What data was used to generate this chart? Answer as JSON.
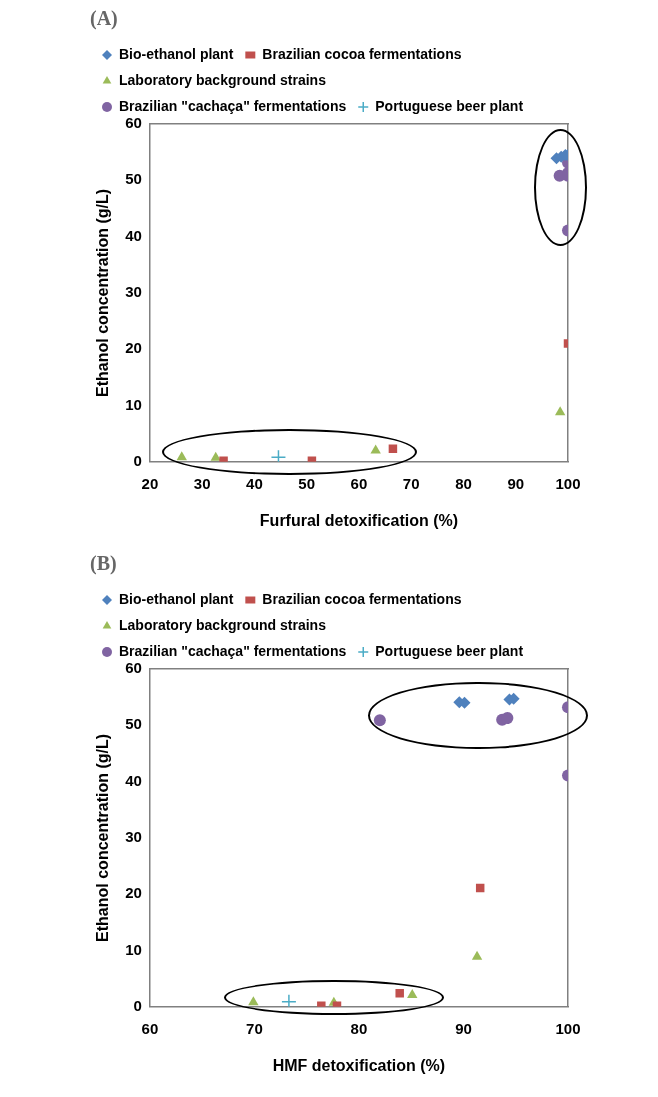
{
  "chart_data": [
    {
      "type": "scatter",
      "title": "(A)",
      "xlabel": "Furfural detoxification (%)",
      "ylabel": "Ethanol concentration (g/L)",
      "xlim": [
        20,
        100
      ],
      "xticks": [
        20,
        30,
        40,
        50,
        60,
        70,
        80,
        90,
        100
      ],
      "ylim": [
        0,
        60
      ],
      "yticks": [
        0,
        10,
        20,
        30,
        40,
        50,
        60
      ],
      "legend": "top",
      "grid": false,
      "series": [
        {
          "name": "Bio-ethanol plant",
          "color": "#4f81bd",
          "marker": "diamond",
          "x": [
            97.8,
            98.7,
            99.5,
            100
          ],
          "values": [
            53.9,
            54.2,
            54.5,
            54.5
          ]
        },
        {
          "name": "Brazilian cocoa fermentations",
          "color": "#c0504d",
          "marker": "square",
          "x": [
            34.1,
            51.0,
            66.5,
            100
          ],
          "values": [
            0.2,
            0.2,
            2.3,
            21.0
          ]
        },
        {
          "name": "Laboratory background strains",
          "color": "#9bbb59",
          "marker": "triangle",
          "x": [
            26.1,
            32.6,
            63.2,
            98.5
          ],
          "values": [
            0.8,
            0.7,
            2.0,
            8.8
          ]
        },
        {
          "name": "Brazilian \"cachaça\" fermentations",
          "color": "#8064a2",
          "marker": "circle",
          "x": [
            100,
            98.4,
            100,
            100,
            100
          ],
          "values": [
            53.1,
            50.8,
            51.3,
            50.8,
            41.1
          ]
        },
        {
          "name": "Portuguese beer plant",
          "color": "#4bacc6",
          "marker": "cross",
          "x": [
            44.6
          ],
          "values": [
            0.8
          ]
        }
      ]
    },
    {
      "type": "scatter",
      "title": "(B)",
      "xlabel": "HMF detoxification (%)",
      "ylabel": "Ethanol concentration (g/L)",
      "xlim": [
        60,
        100
      ],
      "xticks": [
        60,
        70,
        80,
        90,
        100
      ],
      "ylim": [
        0,
        60
      ],
      "yticks": [
        0,
        10,
        20,
        30,
        40,
        50,
        60
      ],
      "legend": "top",
      "grid": false,
      "series": [
        {
          "name": "Bio-ethanol plant",
          "color": "#4f81bd",
          "marker": "diamond",
          "x": [
            89.6,
            90.1,
            94.4,
            94.8
          ],
          "values": [
            54.1,
            54.0,
            54.6,
            54.7
          ]
        },
        {
          "name": "Brazilian cocoa fermentations",
          "color": "#c0504d",
          "marker": "square",
          "x": [
            76.4,
            77.9,
            83.9,
            91.6
          ],
          "values": [
            0.2,
            0.2,
            2.4,
            21.1
          ]
        },
        {
          "name": "Laboratory background strains",
          "color": "#9bbb59",
          "marker": "triangle",
          "x": [
            69.9,
            77.6,
            85.1,
            91.3
          ],
          "values": [
            0.8,
            0.7,
            2.1,
            8.9
          ]
        },
        {
          "name": "Brazilian \"cachaça\" fermentations",
          "color": "#8064a2",
          "marker": "circle",
          "x": [
            82.0,
            93.7,
            94.2,
            100,
            100
          ],
          "values": [
            50.9,
            51.0,
            51.3,
            53.2,
            41.1
          ]
        },
        {
          "name": "Portuguese beer plant",
          "color": "#4bacc6",
          "marker": "cross",
          "x": [
            73.3
          ],
          "values": [
            0.9
          ]
        }
      ]
    }
  ]
}
